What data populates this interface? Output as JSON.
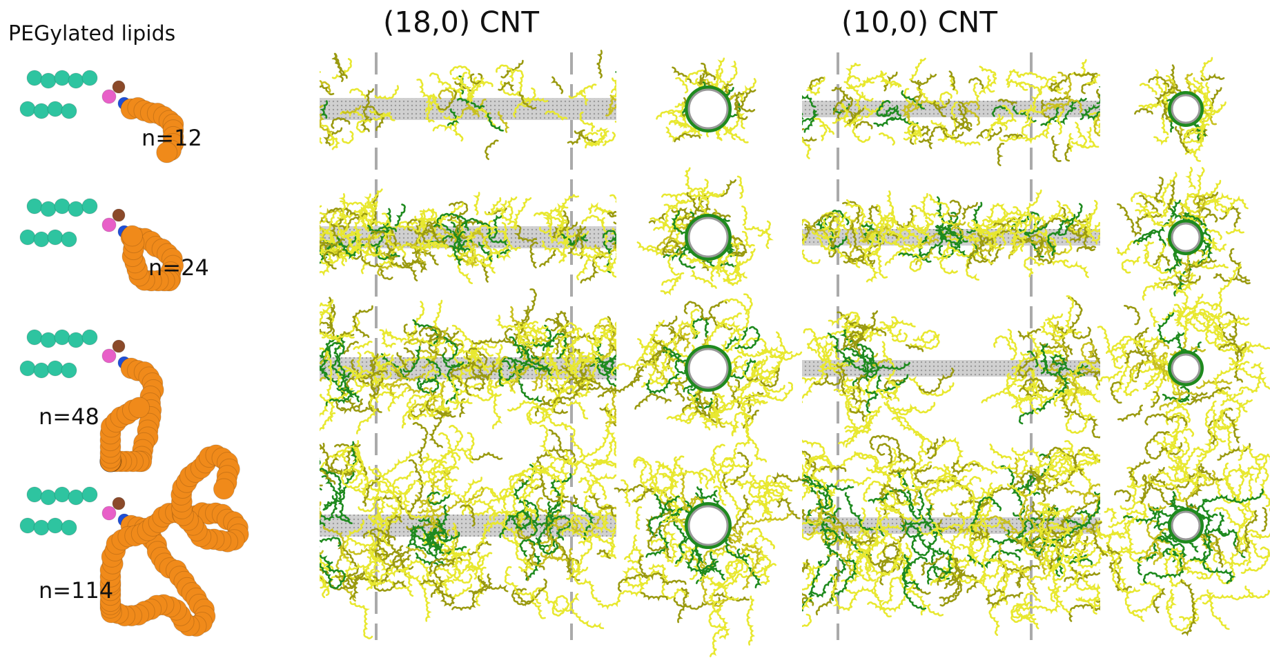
{
  "header": {
    "left_label": "PEGylated lipids",
    "columns": [
      "(18,0) CNT",
      "(10,0) CNT"
    ]
  },
  "rows": [
    {
      "label": "n=12"
    },
    {
      "label": "n=24"
    },
    {
      "label": "n=48"
    },
    {
      "label": "n=114"
    }
  ]
}
